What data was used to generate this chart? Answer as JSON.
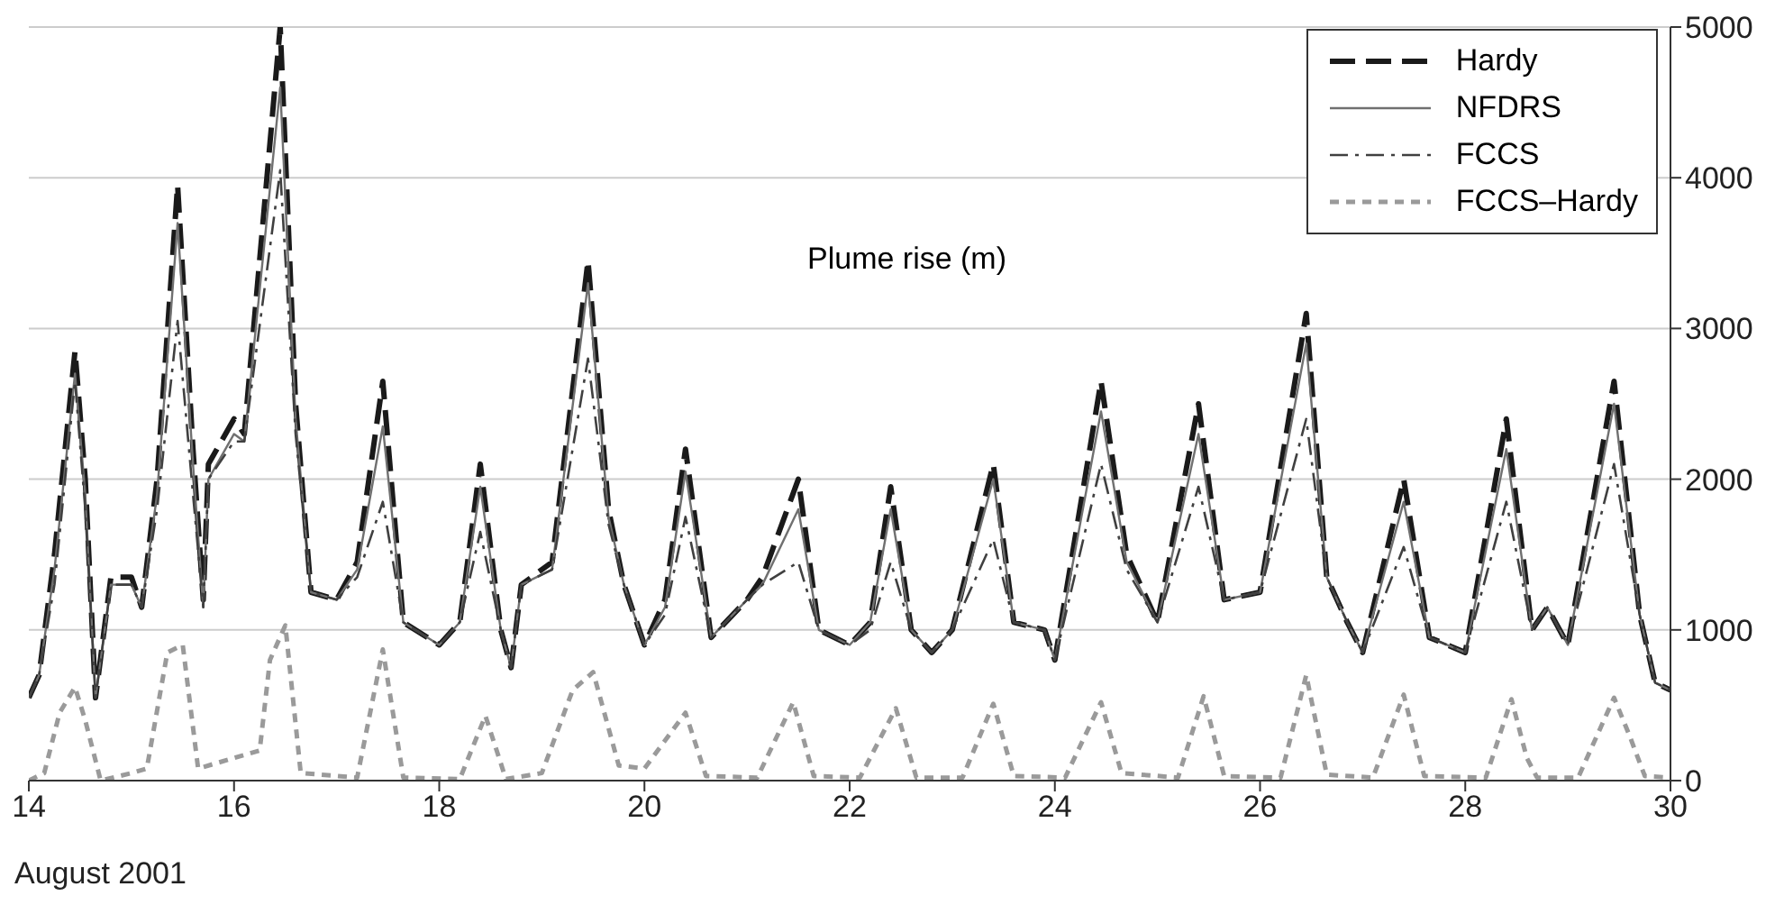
{
  "chart_data": {
    "type": "line",
    "ylabel": "Plume rise (m)",
    "xlabel": "August 2001",
    "x": [
      14.0,
      14.1,
      14.25,
      14.45,
      14.55,
      14.65,
      14.8,
      15.0,
      15.1,
      15.25,
      15.45,
      15.6,
      15.7,
      15.75,
      16.0,
      16.1,
      16.45,
      16.6,
      16.75,
      17.0,
      17.2,
      17.45,
      17.65,
      18.0,
      18.2,
      18.4,
      18.6,
      18.7,
      18.8,
      19.1,
      19.45,
      19.65,
      19.8,
      20.0,
      20.2,
      20.4,
      20.65,
      21.0,
      21.15,
      21.5,
      21.7,
      22.0,
      22.2,
      22.4,
      22.6,
      22.8,
      23.0,
      23.4,
      23.6,
      23.9,
      24.0,
      24.45,
      24.7,
      25.0,
      25.4,
      25.65,
      26.0,
      26.45,
      26.65,
      26.85,
      27.0,
      27.4,
      27.65,
      28.0,
      28.4,
      28.65,
      28.8,
      29.0,
      29.45,
      29.7,
      29.85,
      30.0
    ],
    "series": [
      {
        "name": "Hardy",
        "color": "#1a1a1a",
        "line_style": "dashed",
        "values": [
          550,
          700,
          1500,
          2850,
          2000,
          550,
          1350,
          1350,
          1150,
          2000,
          3950,
          2200,
          1200,
          2100,
          2400,
          2300,
          5000,
          2500,
          1250,
          1200,
          1450,
          2650,
          1050,
          900,
          1050,
          2100,
          1000,
          750,
          1300,
          1450,
          3450,
          1800,
          1300,
          900,
          1200,
          2200,
          950,
          1200,
          1350,
          2000,
          1000,
          900,
          1050,
          1950,
          1000,
          850,
          1000,
          2100,
          1050,
          1000,
          800,
          2650,
          1500,
          1050,
          2500,
          1200,
          1250,
          3100,
          1350,
          1050,
          850,
          2000,
          950,
          850,
          2400,
          1000,
          1150,
          900,
          2650,
          1100,
          650,
          600
        ]
      },
      {
        "name": "NFDRS",
        "color": "#707070",
        "line_style": "solid",
        "values": [
          550,
          700,
          1400,
          2700,
          1900,
          550,
          1300,
          1300,
          1150,
          1900,
          3700,
          2100,
          1150,
          2000,
          2300,
          2250,
          4600,
          2400,
          1250,
          1200,
          1400,
          2350,
          1050,
          900,
          1050,
          1950,
          1000,
          750,
          1300,
          1400,
          3300,
          1750,
          1300,
          900,
          1150,
          2050,
          950,
          1200,
          1300,
          1800,
          1000,
          900,
          1050,
          1800,
          1000,
          850,
          1000,
          2000,
          1050,
          1000,
          800,
          2450,
          1450,
          1050,
          2300,
          1200,
          1250,
          2900,
          1350,
          1050,
          850,
          1850,
          950,
          850,
          2200,
          1000,
          1150,
          900,
          2500,
          1100,
          650,
          600
        ]
      },
      {
        "name": "FCCS",
        "color": "#404040",
        "line_style": "dashdot",
        "values": [
          550,
          700,
          1300,
          2650,
          1800,
          550,
          1300,
          1300,
          1150,
          1800,
          3050,
          1900,
          1150,
          2000,
          2250,
          2250,
          4050,
          2300,
          1250,
          1200,
          1350,
          1850,
          1050,
          900,
          1050,
          1650,
          1000,
          750,
          1300,
          1400,
          2800,
          1700,
          1300,
          900,
          1100,
          1750,
          950,
          1200,
          1300,
          1450,
          1000,
          900,
          1000,
          1450,
          1000,
          850,
          1000,
          1600,
          1050,
          1000,
          800,
          2100,
          1400,
          1050,
          1950,
          1200,
          1250,
          2400,
          1350,
          1050,
          850,
          1550,
          950,
          850,
          1850,
          1000,
          1150,
          900,
          2100,
          1100,
          650,
          600
        ]
      },
      {
        "name": "FCCS–Hardy",
        "color": "#9a9a9a",
        "line_style": "dotted",
        "x": [
          14.0,
          14.15,
          14.3,
          14.45,
          14.55,
          14.7,
          15.0,
          15.15,
          15.35,
          15.5,
          15.65,
          16.0,
          16.25,
          16.35,
          16.5,
          16.65,
          17.2,
          17.45,
          17.65,
          18.2,
          18.45,
          18.65,
          19.0,
          19.3,
          19.5,
          19.75,
          20.0,
          20.4,
          20.6,
          21.1,
          21.45,
          21.65,
          22.1,
          22.45,
          22.65,
          23.1,
          23.4,
          23.6,
          24.1,
          24.45,
          24.65,
          25.2,
          25.45,
          25.65,
          26.2,
          26.45,
          26.65,
          27.1,
          27.4,
          27.6,
          28.2,
          28.45,
          28.6,
          28.7,
          29.1,
          29.45,
          29.6,
          29.75,
          30.0
        ],
        "values": [
          0,
          50,
          450,
          620,
          400,
          0,
          50,
          80,
          850,
          900,
          80,
          150,
          200,
          800,
          1030,
          50,
          20,
          870,
          20,
          10,
          430,
          10,
          50,
          600,
          720,
          100,
          80,
          450,
          30,
          20,
          520,
          30,
          20,
          480,
          20,
          20,
          510,
          30,
          20,
          520,
          50,
          20,
          560,
          30,
          20,
          700,
          40,
          20,
          570,
          30,
          20,
          540,
          150,
          20,
          20,
          550,
          300,
          30,
          20
        ]
      }
    ],
    "xlim": [
      14,
      30
    ],
    "xticks": [
      14,
      16,
      18,
      20,
      22,
      24,
      26,
      28,
      30
    ],
    "ylim": [
      0,
      5000
    ],
    "yticks": [
      0,
      1000,
      2000,
      3000,
      4000,
      5000
    ],
    "grid": "y",
    "legend": "top right"
  }
}
